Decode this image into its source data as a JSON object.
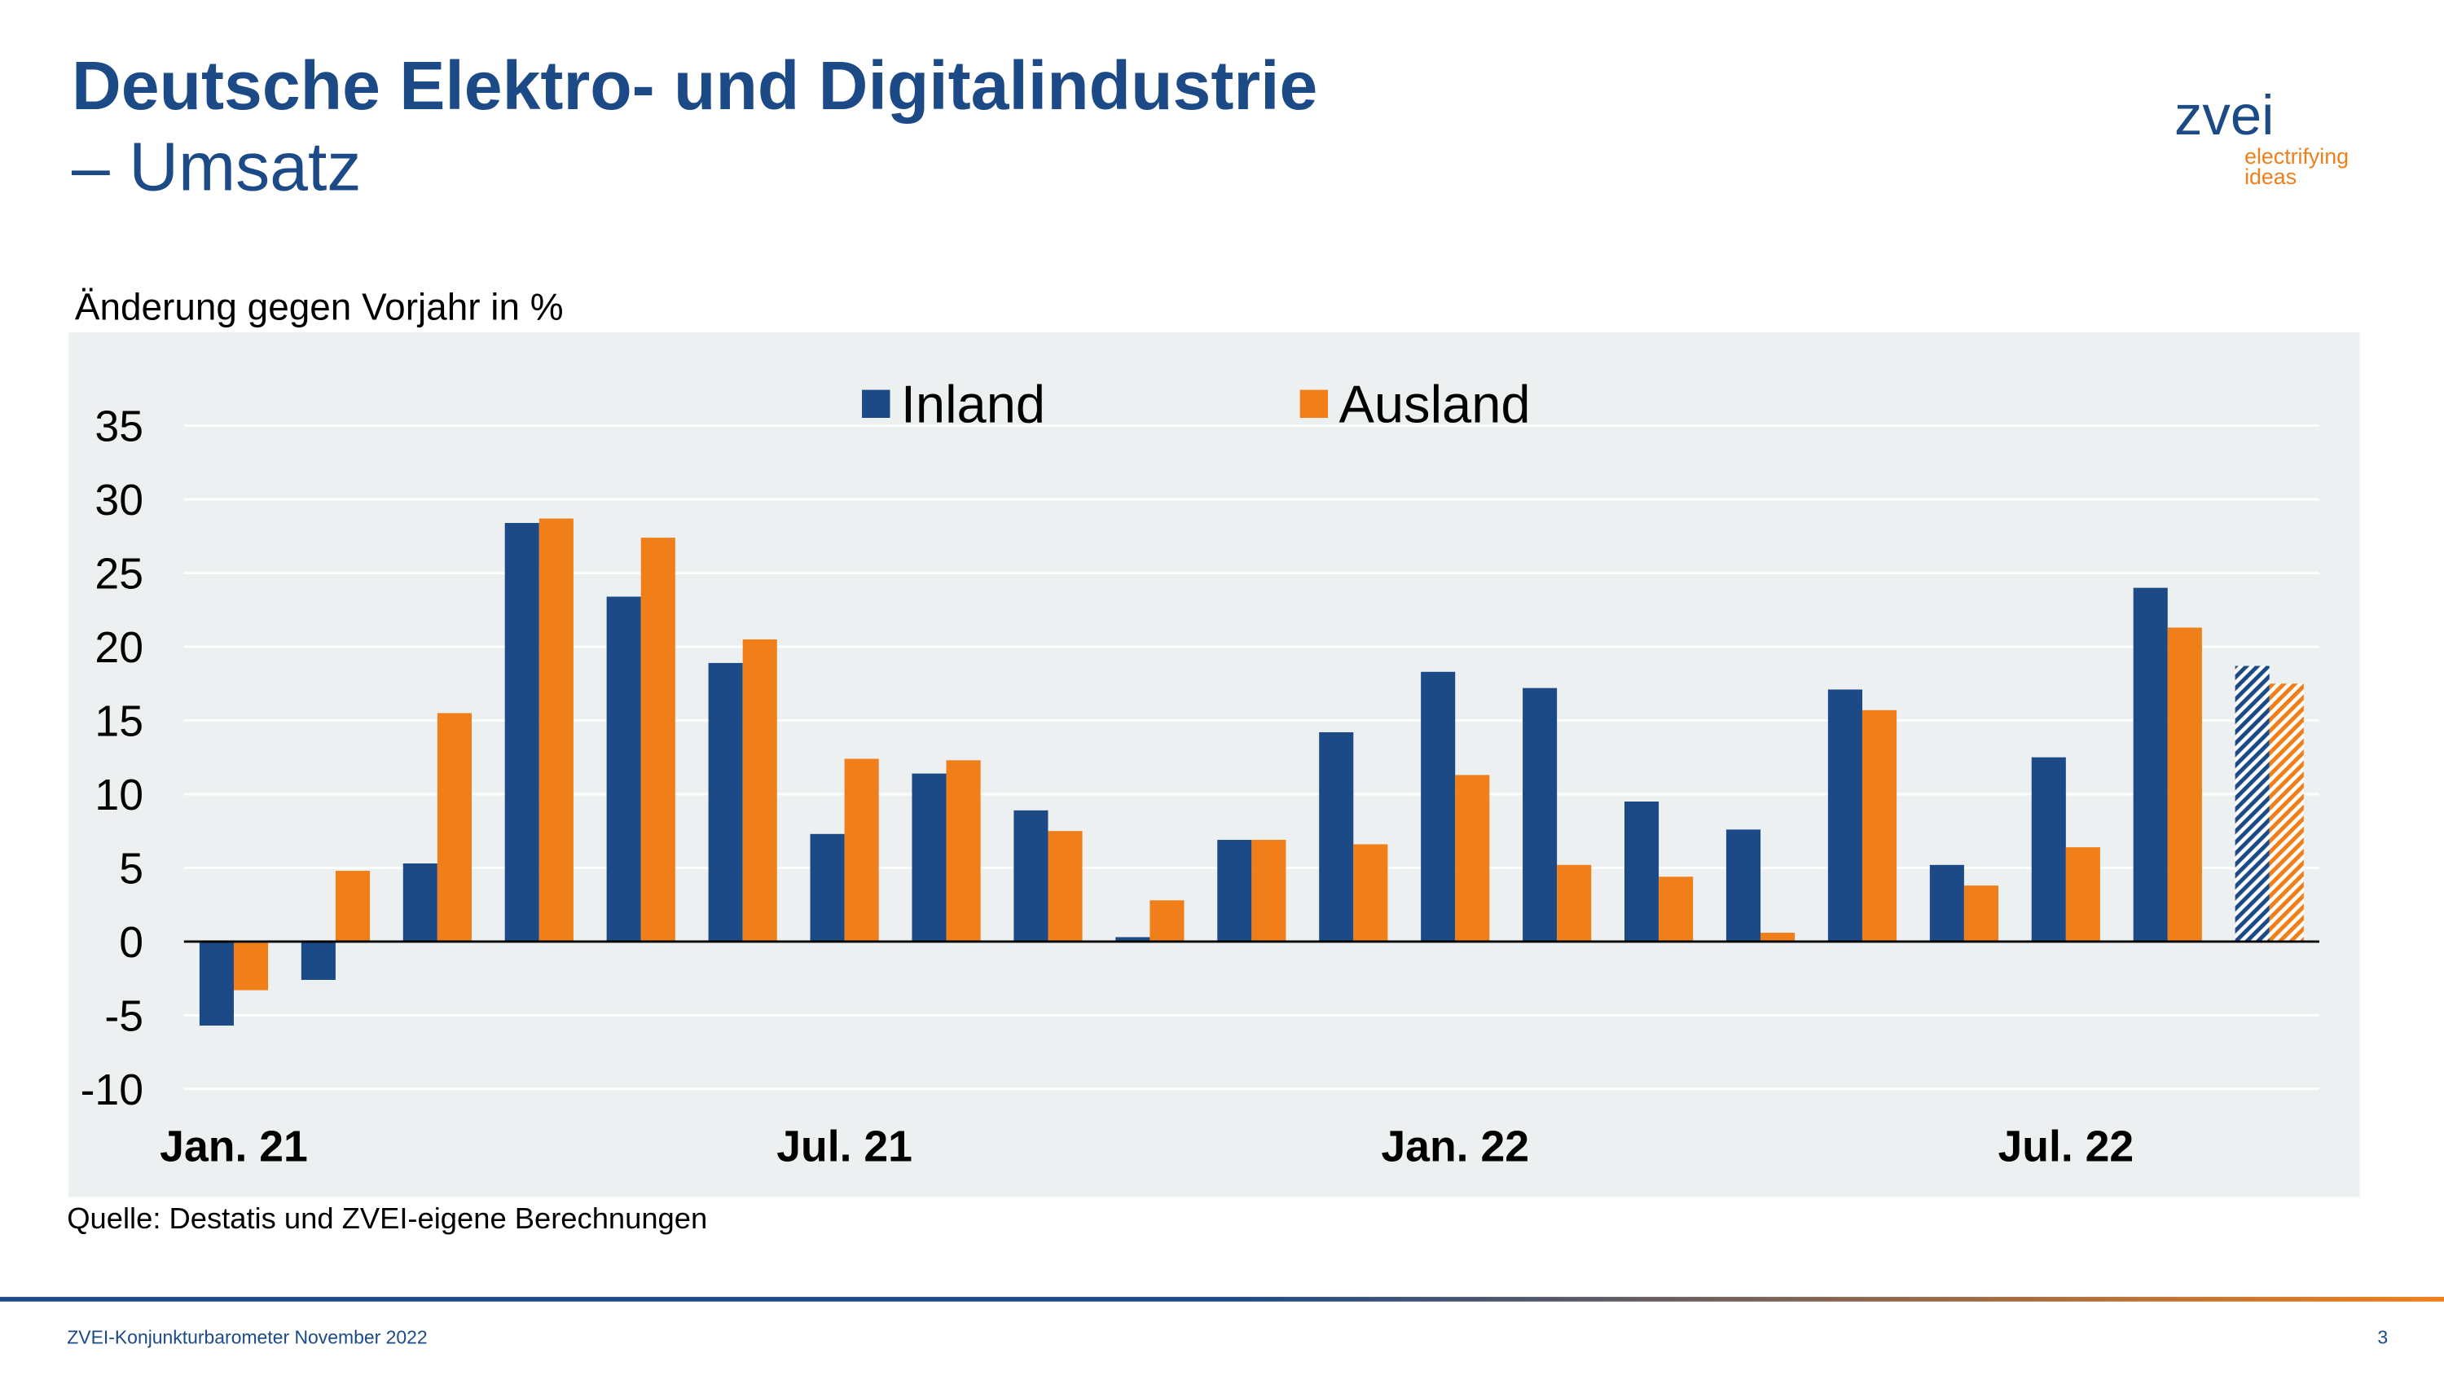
{
  "header": {
    "title": "Deutsche Elektro- und Digitalindustrie",
    "subtitle": "– Umsatz"
  },
  "logo": {
    "name": "zvei",
    "tagline": [
      "electrifying",
      "ideas"
    ]
  },
  "chart_data": {
    "type": "bar",
    "y_label": "Änderung gegen Vorjahr in %",
    "categories": [
      "Jan. 21",
      null,
      null,
      null,
      null,
      null,
      "Jul. 21",
      null,
      null,
      null,
      null,
      null,
      "Jan. 22",
      null,
      null,
      null,
      null,
      null,
      "Jul. 22",
      null,
      null
    ],
    "series": [
      {
        "name": "Inland",
        "color": "#1c4a87",
        "values": [
          -5.7,
          -2.6,
          5.3,
          28.4,
          23.4,
          18.9,
          7.3,
          11.4,
          8.9,
          0.3,
          6.9,
          14.2,
          18.3,
          17.2,
          9.5,
          7.6,
          17.1,
          5.2,
          12.5,
          24.0,
          18.7
        ]
      },
      {
        "name": "Ausland",
        "color": "#f07f1a",
        "values": [
          -3.3,
          4.8,
          15.5,
          28.7,
          27.4,
          20.5,
          12.4,
          12.3,
          7.5,
          2.8,
          6.9,
          6.6,
          11.3,
          5.2,
          4.4,
          0.6,
          15.7,
          3.8,
          6.4,
          21.3,
          17.5
        ]
      }
    ],
    "hatch_last": true,
    "ylim": [
      -10,
      35
    ],
    "yticks": [
      35,
      30,
      25,
      20,
      15,
      10,
      5,
      0,
      -5,
      -10
    ],
    "grid": true,
    "legend": "top"
  },
  "source": "Quelle: Destatis und ZVEI-eigene Berechnungen",
  "footer": {
    "text": "ZVEI-Konjunkturbarometer November 2022",
    "page": "3"
  }
}
